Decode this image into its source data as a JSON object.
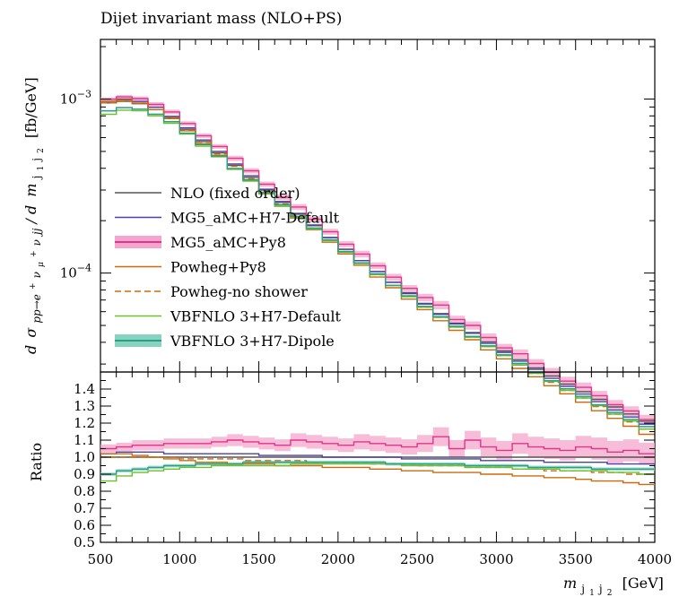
{
  "chart_data": [
    {
      "type": "line",
      "title": "Dijet invariant mass (NLO+PS)",
      "ylabel": "d σ_{pp→e+νμ+νjj} / d m_{j1j2} [fb/GeV]",
      "ylabel_parts": {
        "d1": "d",
        "sigma": "σ",
        "process": "pp→e",
        "plus1": "+",
        "nu": "ν",
        "mu": "μ",
        "plus2": "+",
        "nu2": "ν",
        "jj": "jj",
        "slash": "/ d",
        "m": "m",
        "sub": "j",
        "sub1": "1",
        "sub2": "j",
        "sub3": "2",
        "unit": "[fb/GeV]"
      },
      "yscale": "log",
      "ylim": [
        2.7e-05,
        0.0022
      ],
      "xlim": [
        500,
        4000
      ],
      "y_ticks": [
        {
          "value": 0.001,
          "base": "10",
          "exp": "−3"
        },
        {
          "value": 0.0001,
          "base": "10",
          "exp": "−4"
        }
      ],
      "x_bin_edges": [
        500,
        600,
        700,
        800,
        900,
        1000,
        1100,
        1200,
        1300,
        1400,
        1500,
        1600,
        1700,
        1800,
        1900,
        2000,
        2100,
        2200,
        2300,
        2400,
        2500,
        2600,
        2700,
        2800,
        2900,
        3000,
        3100,
        3200,
        3300,
        3400,
        3500,
        3600,
        3700,
        3800,
        3900,
        4000
      ],
      "reference_values": [
        0.00095,
        0.00097,
        0.00094,
        0.00087,
        0.00078,
        0.00067,
        0.00057,
        0.00049,
        0.000415,
        0.000355,
        0.0003,
        0.000255,
        0.000218,
        0.000187,
        0.00016,
        0.000137,
        0.000118,
        0.000102,
        8.85e-05,
        7.7e-05,
        6.7e-05,
        5.85e-05,
        5.15e-05,
        4.55e-05,
        4.02e-05,
        3.57e-05,
        3.18e-05,
        2.85e-05,
        2.56e-05,
        2.3e-05,
        2.08e-05,
        1.88e-05,
        1.7e-05,
        1.55e-05,
        1.41e-05
      ],
      "legend": {
        "position": "lower-left",
        "entries": [
          {
            "label": "NLO (fixed order)",
            "color": "#555555",
            "style": "solid"
          },
          {
            "label": "MG5_aMC+H7-Default",
            "color": "#4b3fa8",
            "style": "solid"
          },
          {
            "label": "MG5_aMC+Py8",
            "color": "#e0358a",
            "style": "band",
            "band_color": "#f3a5cb"
          },
          {
            "label": "Powheg+Py8",
            "color": "#cc6a0e",
            "style": "solid"
          },
          {
            "label": "Powheg-no shower",
            "color": "#cc6a0e",
            "style": "dashed"
          },
          {
            "label": "VBFNLO 3+H7-Default",
            "color": "#6bbf2a",
            "style": "solid"
          },
          {
            "label": "VBFNLO 3+H7-Dipole",
            "color": "#2a9f85",
            "style": "band",
            "band_color": "#88d3c0"
          }
        ]
      },
      "series": [
        {
          "label": "NLO (fixed order)",
          "ratio": [
            1.0,
            1.0,
            1.0,
            1.0,
            1.0,
            1.0,
            1.0,
            1.0,
            1.0,
            1.0,
            1.0,
            1.0,
            1.0,
            1.0,
            1.0,
            1.0,
            1.0,
            1.0,
            1.0,
            1.0,
            1.0,
            1.0,
            1.0,
            1.0,
            1.0,
            1.0,
            1.0,
            1.0,
            1.0,
            1.0,
            1.0,
            1.0,
            1.0,
            1.0,
            1.0
          ]
        },
        {
          "label": "MG5_aMC+H7-Default",
          "ratio": [
            1.02,
            1.03,
            1.03,
            1.03,
            1.02,
            1.02,
            1.02,
            1.02,
            1.02,
            1.02,
            1.01,
            1.01,
            1.01,
            1.01,
            1.0,
            1.0,
            1.0,
            1.0,
            1.0,
            0.99,
            0.99,
            0.99,
            0.99,
            0.99,
            0.98,
            0.98,
            0.98,
            0.98,
            0.97,
            0.97,
            0.97,
            0.97,
            0.96,
            0.96,
            0.96
          ]
        },
        {
          "label": "MG5_aMC+Py8",
          "ratio": [
            1.05,
            1.06,
            1.07,
            1.07,
            1.08,
            1.08,
            1.08,
            1.09,
            1.1,
            1.09,
            1.08,
            1.07,
            1.1,
            1.09,
            1.08,
            1.07,
            1.09,
            1.08,
            1.07,
            1.06,
            1.08,
            1.12,
            1.05,
            1.1,
            1.06,
            1.04,
            1.08,
            1.06,
            1.05,
            1.04,
            1.06,
            1.05,
            1.03,
            1.04,
            1.02
          ],
          "band": [
            0.025,
            0.025,
            0.03,
            0.03,
            0.03,
            0.03,
            0.03,
            0.03,
            0.035,
            0.035,
            0.035,
            0.035,
            0.04,
            0.04,
            0.04,
            0.04,
            0.045,
            0.045,
            0.045,
            0.045,
            0.05,
            0.055,
            0.05,
            0.055,
            0.055,
            0.055,
            0.06,
            0.06,
            0.06,
            0.06,
            0.065,
            0.065,
            0.065,
            0.065,
            0.065
          ]
        },
        {
          "label": "Powheg+Py8",
          "ratio": [
            1.02,
            1.02,
            1.01,
            1.0,
            0.99,
            0.98,
            0.97,
            0.97,
            0.96,
            0.96,
            0.96,
            0.95,
            0.95,
            0.95,
            0.94,
            0.94,
            0.94,
            0.93,
            0.93,
            0.92,
            0.92,
            0.91,
            0.91,
            0.91,
            0.9,
            0.9,
            0.89,
            0.89,
            0.88,
            0.88,
            0.87,
            0.86,
            0.86,
            0.85,
            0.84
          ]
        },
        {
          "label": "Powheg-no shower",
          "ratio": [
            1.0,
            1.0,
            1.0,
            1.0,
            1.0,
            0.99,
            0.99,
            0.99,
            0.99,
            0.98,
            0.98,
            0.98,
            0.98,
            0.97,
            0.97,
            0.97,
            0.97,
            0.96,
            0.96,
            0.96,
            0.95,
            0.95,
            0.95,
            0.94,
            0.94,
            0.94,
            0.93,
            0.93,
            0.92,
            0.92,
            0.92,
            0.91,
            0.91,
            0.9,
            0.9
          ]
        },
        {
          "label": "VBFNLO 3+H7-Default",
          "ratio": [
            0.86,
            0.89,
            0.91,
            0.92,
            0.93,
            0.94,
            0.94,
            0.95,
            0.95,
            0.95,
            0.95,
            0.95,
            0.96,
            0.96,
            0.96,
            0.96,
            0.96,
            0.96,
            0.96,
            0.95,
            0.95,
            0.95,
            0.95,
            0.94,
            0.94,
            0.94,
            0.93,
            0.93,
            0.93,
            0.92,
            0.92,
            0.92,
            0.91,
            0.91,
            0.9
          ]
        },
        {
          "label": "VBFNLO 3+H7-Dipole",
          "ratio": [
            0.9,
            0.92,
            0.93,
            0.94,
            0.95,
            0.95,
            0.96,
            0.96,
            0.96,
            0.97,
            0.97,
            0.97,
            0.97,
            0.97,
            0.97,
            0.97,
            0.97,
            0.97,
            0.96,
            0.96,
            0.96,
            0.96,
            0.96,
            0.95,
            0.95,
            0.95,
            0.95,
            0.94,
            0.94,
            0.94,
            0.94,
            0.93,
            0.93,
            0.93,
            0.93
          ],
          "band": [
            0.01,
            0.01,
            0.01,
            0.01,
            0.01,
            0.01,
            0.01,
            0.01,
            0.01,
            0.01,
            0.01,
            0.01,
            0.01,
            0.01,
            0.01,
            0.01,
            0.01,
            0.01,
            0.01,
            0.01,
            0.01,
            0.01,
            0.01,
            0.01,
            0.01,
            0.01,
            0.01,
            0.01,
            0.01,
            0.01,
            0.01,
            0.01,
            0.01,
            0.01,
            0.01
          ]
        }
      ]
    },
    {
      "type": "line",
      "ylabel": "Ratio",
      "xlabel_parts": {
        "m": "m",
        "sub": "j",
        "sub1": "1",
        "sub2": "j",
        "sub3": "2",
        "unit": "[GeV]"
      },
      "ylim": [
        0.5,
        1.5
      ],
      "y_tick_labels": [
        "0.5",
        "0.6",
        "0.7",
        "0.8",
        "0.9",
        "1.0",
        "1.1",
        "1.2",
        "1.3",
        "1.4"
      ],
      "x_tick_labels": [
        "500",
        "1000",
        "1500",
        "2000",
        "2500",
        "3000",
        "3500",
        "4000"
      ],
      "xlim": [
        500,
        4000
      ]
    }
  ]
}
